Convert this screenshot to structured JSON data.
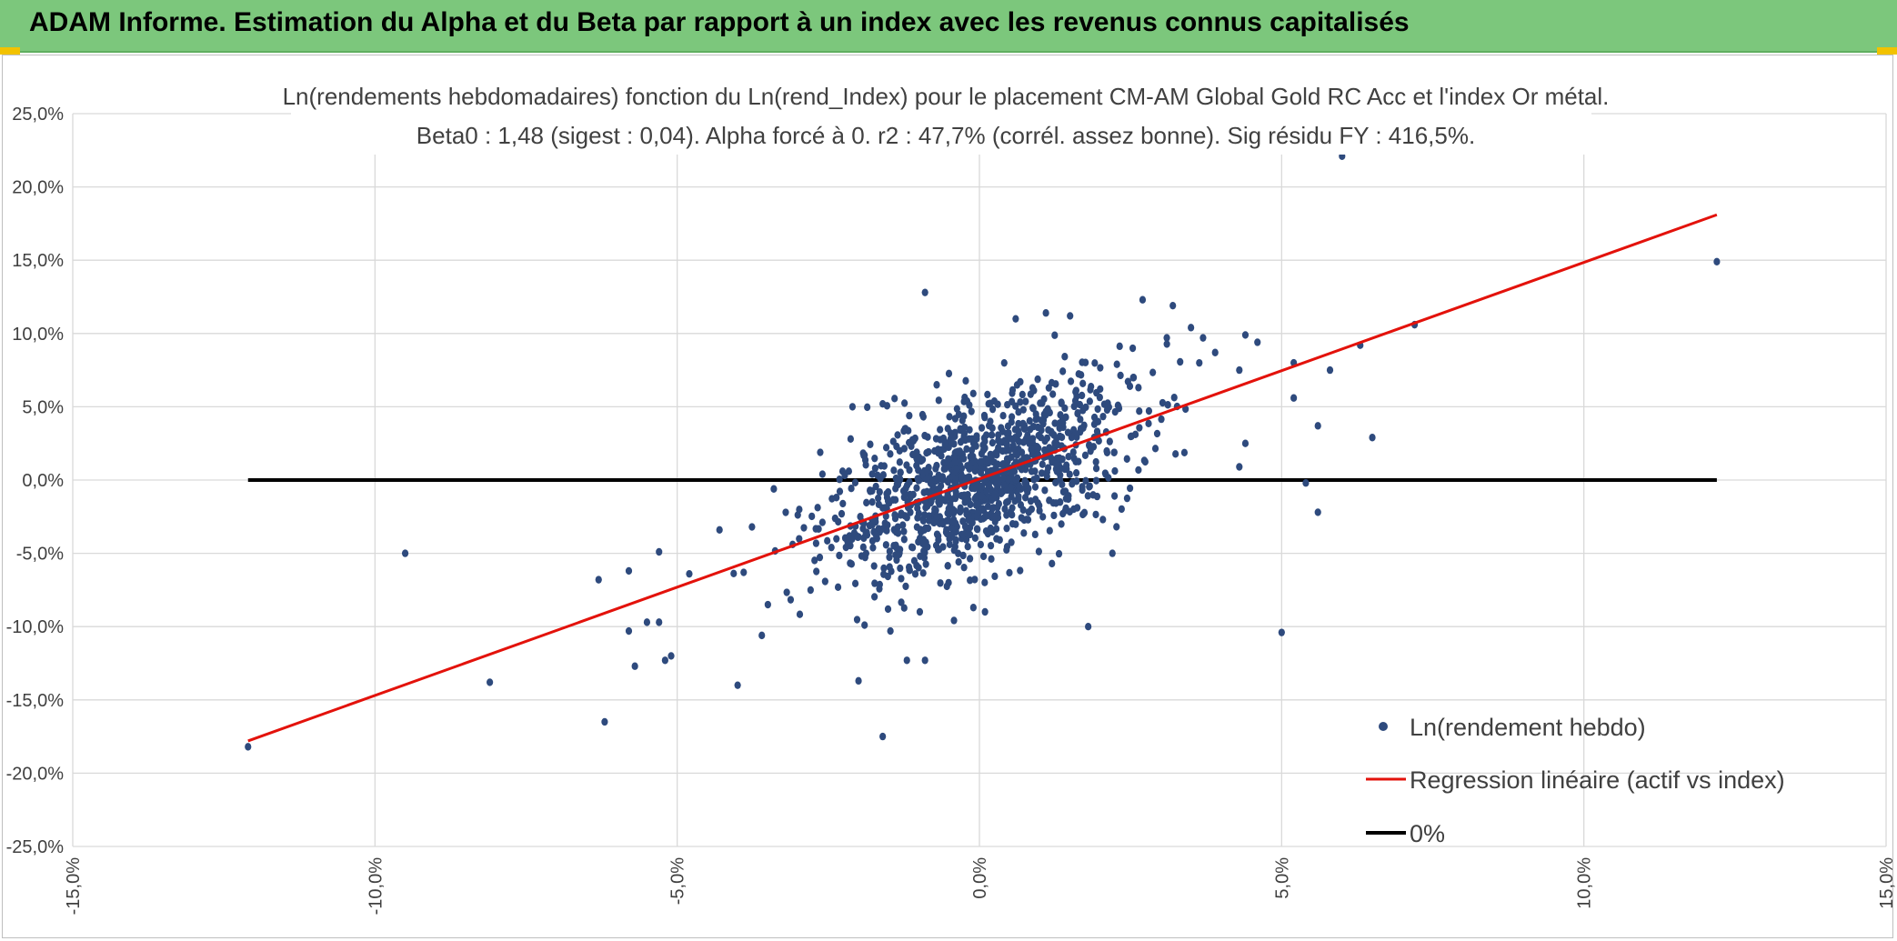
{
  "header": {
    "title": "ADAM Informe. Estimation du Alpha et du Beta par rapport à un index avec les revenus connus capitalisés"
  },
  "colors": {
    "banner": "#7cc77c",
    "points": "#2e4a7d",
    "regression": "#e3120b",
    "zero_line": "#000000",
    "grid": "#d9d9d9"
  },
  "chart_data": {
    "type": "scatter",
    "title": "Ln(rendements hebdomadaires) fonction du Ln(rend_Index) pour le placement CM-AM Global Gold RC Acc et l'index Or métal.",
    "subtitle": "Beta0 : 1,48 (sigest : 0,04). Alpha forcé à 0. r2 : 47,7% (corrél. assez bonne). Sig résidu FY : 416,5%.",
    "xlabel": "",
    "ylabel": "",
    "xlim": [
      -0.15,
      0.15
    ],
    "ylim": [
      -0.25,
      0.25
    ],
    "grid": true,
    "legend_position": "bottom-right",
    "x_ticks": [
      "-15,0%",
      "-10,0%",
      "-5,0%",
      "0,0%",
      "5,0%",
      "10,0%",
      "15,0%"
    ],
    "y_ticks": [
      "25,0%",
      "20,0%",
      "15,0%",
      "10,0%",
      "5,0%",
      "0,0%",
      "-5,0%",
      "-10,0%",
      "-15,0%",
      "-20,0%",
      "-25,0%"
    ],
    "series": [
      {
        "name": "Ln(rendement hebdo)",
        "kind": "points",
        "generated_cloud": {
          "count": 1150,
          "beta": 1.48,
          "x_sigma": 0.0125,
          "resid_sigma": 0.027,
          "x_min": -0.045,
          "x_max": 0.045
        },
        "points": [
          [
            -0.121,
            -0.182
          ],
          [
            -0.095,
            -0.05
          ],
          [
            -0.081,
            -0.138
          ],
          [
            -0.063,
            -0.068
          ],
          [
            -0.062,
            -0.165
          ],
          [
            -0.058,
            -0.062
          ],
          [
            -0.058,
            -0.103
          ],
          [
            -0.057,
            -0.127
          ],
          [
            -0.055,
            -0.097
          ],
          [
            -0.053,
            -0.097
          ],
          [
            -0.053,
            -0.049
          ],
          [
            -0.052,
            -0.123
          ],
          [
            -0.051,
            -0.12
          ],
          [
            -0.048,
            -0.064
          ],
          [
            -0.04,
            -0.14
          ],
          [
            -0.036,
            -0.106
          ],
          [
            -0.035,
            -0.085
          ],
          [
            -0.02,
            -0.137
          ],
          [
            -0.016,
            -0.175
          ],
          [
            -0.012,
            -0.123
          ],
          [
            -0.009,
            0.128
          ],
          [
            0.006,
            0.11
          ],
          [
            0.011,
            0.114
          ],
          [
            0.015,
            0.112
          ],
          [
            0.018,
            -0.1
          ],
          [
            0.027,
            0.123
          ],
          [
            0.031,
            0.097
          ],
          [
            0.032,
            0.119
          ],
          [
            0.035,
            0.104
          ],
          [
            0.037,
            0.097
          ],
          [
            0.039,
            0.087
          ],
          [
            0.043,
            0.075
          ],
          [
            0.044,
            0.099
          ],
          [
            0.046,
            0.094
          ],
          [
            0.05,
            -0.104
          ],
          [
            0.052,
            0.056
          ],
          [
            0.052,
            0.08
          ],
          [
            0.054,
            -0.002
          ],
          [
            0.056,
            -0.022
          ],
          [
            0.056,
            0.037
          ],
          [
            0.058,
            0.075
          ],
          [
            0.06,
            0.221
          ],
          [
            0.063,
            0.092
          ],
          [
            0.065,
            0.029
          ],
          [
            0.072,
            0.106
          ],
          [
            0.122,
            0.149
          ],
          [
            -0.021,
            0.05
          ],
          [
            -0.019,
            0.017
          ],
          [
            -0.016,
            0.052
          ],
          [
            -0.019,
            -0.099
          ],
          [
            -0.009,
            -0.123
          ],
          [
            -0.001,
            -0.087
          ],
          [
            0.012,
            -0.057
          ],
          [
            0.022,
            -0.05
          ],
          [
            0.044,
            0.025
          ],
          [
            0.043,
            0.009
          ],
          [
            -0.039,
            -0.063
          ],
          [
            -0.043,
            -0.034
          ]
        ]
      },
      {
        "name": "Regression linéaire (actif vs index)",
        "kind": "line",
        "x": [
          -0.121,
          0.122
        ],
        "y": [
          -0.178,
          0.181
        ]
      },
      {
        "name": "0%",
        "kind": "line",
        "x": [
          -0.121,
          0.122
        ],
        "y": [
          0,
          0
        ]
      }
    ]
  }
}
